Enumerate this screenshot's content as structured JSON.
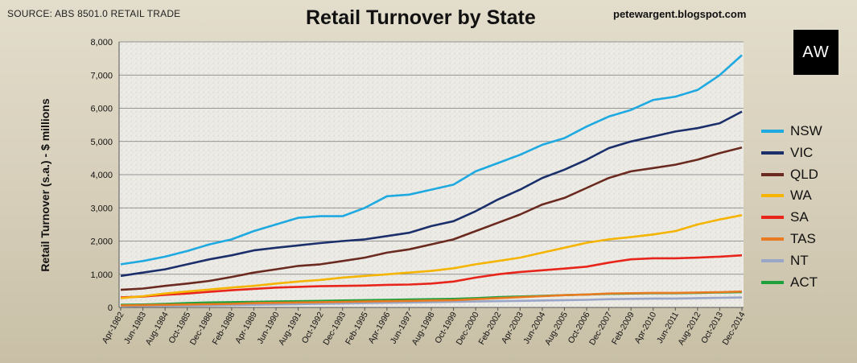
{
  "header": {
    "source": "SOURCE: ABS 8501.0 RETAIL TRADE",
    "credit": "petewargent.blogspot.com",
    "logo_text": "AW"
  },
  "chart_data": {
    "type": "line",
    "title": "Retail Turnover by State",
    "ylabel": "Retail Turnover (s.a.) - $ millions",
    "xlabel": "",
    "ylim": [
      0,
      8000
    ],
    "y_ticks": [
      0,
      1000,
      2000,
      3000,
      4000,
      5000,
      6000,
      7000,
      8000
    ],
    "y_tick_labels": [
      "0",
      "1,000",
      "2,000",
      "3,000",
      "4,000",
      "5,000",
      "6,000",
      "7,000",
      "8,000"
    ],
    "x_tick_labels": [
      "Apr-1982",
      "Jun-1983",
      "Aug-1984",
      "Oct-1985",
      "Dec-1986",
      "Feb-1988",
      "Apr-1989",
      "Jun-1990",
      "Aug-1991",
      "Oct-1992",
      "Dec-1993",
      "Feb-1995",
      "Apr-1996",
      "Jun-1997",
      "Aug-1998",
      "Oct-1999",
      "Dec-2000",
      "Feb-2002",
      "Apr-2003",
      "Jun-2004",
      "Aug-2005",
      "Oct-2006",
      "Dec-2007",
      "Feb-2009",
      "Apr-2010",
      "Jun-2011",
      "Aug-2012",
      "Oct-2013",
      "Dec-2014"
    ],
    "x": [
      "Apr-1982",
      "Jun-1983",
      "Aug-1984",
      "Oct-1985",
      "Dec-1986",
      "Feb-1988",
      "Apr-1989",
      "Jun-1990",
      "Aug-1991",
      "Oct-1992",
      "Dec-1993",
      "Feb-1995",
      "Apr-1996",
      "Jun-1997",
      "Aug-1998",
      "Oct-1999",
      "Dec-2000",
      "Feb-2002",
      "Apr-2003",
      "Jun-2004",
      "Aug-2005",
      "Oct-2006",
      "Dec-2007",
      "Feb-2009",
      "Apr-2010",
      "Jun-2011",
      "Aug-2012",
      "Oct-2013",
      "Dec-2014"
    ],
    "grid": true,
    "legend_position": "right",
    "series": [
      {
        "name": "NSW",
        "color": "#1fa9e1",
        "values": [
          1300,
          1400,
          1530,
          1700,
          1900,
          2050,
          2300,
          2500,
          2700,
          2750,
          2750,
          3000,
          3350,
          3400,
          3550,
          3700,
          4100,
          4350,
          4600,
          4900,
          5100,
          5450,
          5750,
          5950,
          6250,
          6350,
          6550,
          7000,
          7600
        ]
      },
      {
        "name": "VIC",
        "color": "#1b2f6b",
        "values": [
          950,
          1050,
          1150,
          1300,
          1450,
          1570,
          1720,
          1800,
          1870,
          1940,
          2000,
          2050,
          2150,
          2250,
          2450,
          2600,
          2900,
          3250,
          3550,
          3900,
          4150,
          4450,
          4800,
          5000,
          5150,
          5300,
          5400,
          5550,
          5900
        ]
      },
      {
        "name": "QLD",
        "color": "#6b2a1f",
        "values": [
          530,
          570,
          650,
          720,
          800,
          920,
          1050,
          1150,
          1250,
          1300,
          1400,
          1500,
          1650,
          1750,
          1900,
          2050,
          2300,
          2550,
          2800,
          3100,
          3300,
          3600,
          3900,
          4100,
          4200,
          4300,
          4450,
          4650,
          4820
        ]
      },
      {
        "name": "WA",
        "color": "#f4b400",
        "values": [
          280,
          340,
          420,
          480,
          540,
          600,
          650,
          720,
          780,
          830,
          900,
          950,
          1000,
          1050,
          1100,
          1180,
          1300,
          1400,
          1500,
          1650,
          1800,
          1950,
          2050,
          2120,
          2200,
          2300,
          2500,
          2650,
          2780
        ]
      },
      {
        "name": "SA",
        "color": "#e8251b",
        "values": [
          300,
          330,
          380,
          420,
          470,
          520,
          560,
          600,
          620,
          640,
          650,
          660,
          680,
          690,
          720,
          780,
          900,
          1000,
          1070,
          1120,
          1170,
          1230,
          1350,
          1450,
          1480,
          1480,
          1500,
          1530,
          1570
        ]
      },
      {
        "name": "TAS",
        "color": "#e87b22",
        "values": [
          60,
          70,
          80,
          90,
          100,
          110,
          130,
          140,
          150,
          160,
          170,
          180,
          190,
          200,
          210,
          220,
          250,
          280,
          310,
          340,
          370,
          390,
          420,
          430,
          440,
          440,
          450,
          460,
          480
        ]
      },
      {
        "name": "NT",
        "color": "#9aa6c6",
        "values": [
          40,
          45,
          50,
          55,
          60,
          70,
          80,
          90,
          100,
          110,
          120,
          130,
          140,
          150,
          160,
          170,
          180,
          190,
          200,
          210,
          220,
          230,
          250,
          260,
          270,
          270,
          280,
          290,
          300
        ]
      },
      {
        "name": "ACT",
        "color": "#1ea03c",
        "values": [
          80,
          90,
          110,
          130,
          150,
          160,
          170,
          180,
          190,
          200,
          210,
          220,
          230,
          240,
          250,
          260,
          280,
          310,
          330,
          350,
          370,
          390,
          410,
          420,
          430,
          430,
          440,
          450,
          460
        ]
      }
    ]
  }
}
